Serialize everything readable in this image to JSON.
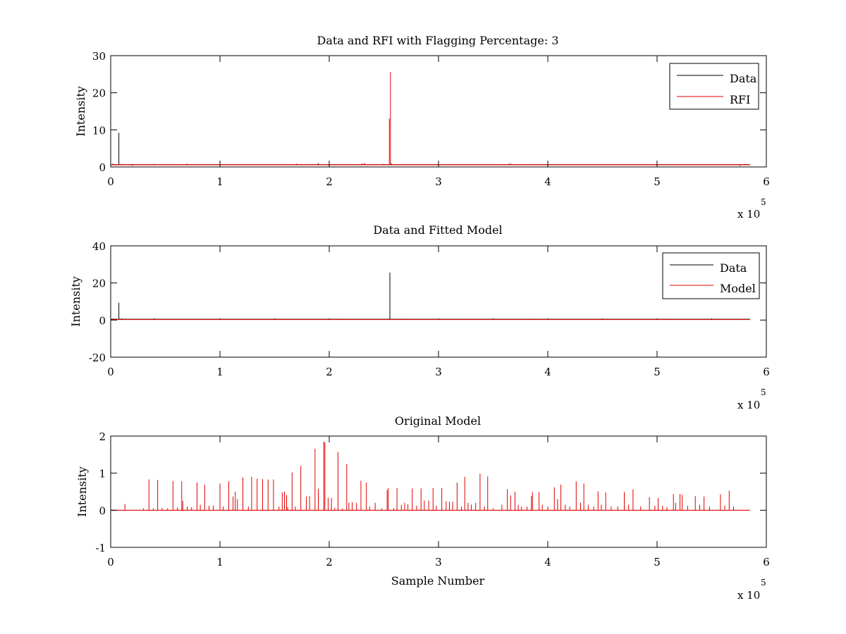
{
  "colors": {
    "data": "#000000",
    "rfi": "#e00000",
    "model": "#e00000",
    "background": "#ffffff"
  },
  "chart_data": [
    {
      "type": "line",
      "title": "Data and RFI with Flagging Percentage: 3",
      "xlabel": "",
      "ylabel": "Intensity",
      "xlim": [
        0,
        6
      ],
      "ylim": [
        0,
        30
      ],
      "x_multiplier": "x 10",
      "x_multiplier_exponent": "5",
      "x_ticks": [
        "0",
        "1",
        "2",
        "3",
        "4",
        "5",
        "6"
      ],
      "y_ticks": [
        "0",
        "10",
        "20",
        "30"
      ],
      "legend": {
        "placement": "top-right",
        "entries": [
          "Data",
          "RFI"
        ]
      },
      "grid": false,
      "series": [
        {
          "name": "Data",
          "color": "#000000",
          "baseline": 0.6,
          "end": 5.85,
          "spikes": [
            [
              0.02,
              0.9
            ],
            [
              0.05,
              0.4
            ],
            [
              0.075,
              9.2
            ],
            [
              0.1,
              0.8
            ],
            [
              0.14,
              0.6
            ],
            [
              0.2,
              0.3
            ],
            [
              0.23,
              0.5
            ],
            [
              0.4,
              0.8
            ],
            [
              0.6,
              0.7
            ],
            [
              0.9,
              0.7
            ],
            [
              1.2,
              0.7
            ],
            [
              1.5,
              0.7
            ],
            [
              1.9,
              1.0
            ],
            [
              2.3,
              0.9
            ],
            [
              2.5,
              0.8
            ],
            [
              2.9,
              0.7
            ],
            [
              3.4,
              0.7
            ],
            [
              3.8,
              0.7
            ],
            [
              4.3,
              0.7
            ],
            [
              4.9,
              0.7
            ],
            [
              5.3,
              0.7
            ],
            [
              5.76,
              0.3
            ],
            [
              5.8,
              0.8
            ]
          ]
        },
        {
          "name": "RFI",
          "color": "#e00000",
          "baseline": 0.6,
          "end": 5.85,
          "spikes": [
            [
              0.7,
              0.9
            ],
            [
              1.7,
              0.9
            ],
            [
              2.32,
              1.1
            ],
            [
              2.55,
              13.0
            ],
            [
              2.56,
              25.6
            ],
            [
              2.57,
              1.0
            ],
            [
              3.65,
              1.0
            ],
            [
              3.67,
              0.9
            ]
          ]
        }
      ]
    },
    {
      "type": "line",
      "title": "Data and Fitted Model",
      "xlabel": "",
      "ylabel": "Intensity",
      "xlim": [
        0,
        6
      ],
      "ylim": [
        -20,
        40
      ],
      "x_multiplier": "x 10",
      "x_multiplier_exponent": "5",
      "x_ticks": [
        "0",
        "1",
        "2",
        "3",
        "4",
        "5",
        "6"
      ],
      "y_ticks": [
        "-20",
        "0",
        "20",
        "40"
      ],
      "legend": {
        "placement": "top-right",
        "entries": [
          "Data",
          "Model"
        ]
      },
      "grid": false,
      "series": [
        {
          "name": "Data",
          "color": "#000000",
          "baseline": 0.4,
          "end": 5.85,
          "spikes": [
            [
              0.02,
              0.8
            ],
            [
              0.075,
              9.3
            ],
            [
              0.1,
              0.9
            ],
            [
              0.4,
              0.9
            ],
            [
              1.0,
              0.9
            ],
            [
              1.5,
              0.9
            ],
            [
              2.0,
              0.9
            ],
            [
              2.555,
              25.6
            ],
            [
              3.0,
              0.9
            ],
            [
              3.5,
              0.9
            ],
            [
              4.0,
              0.9
            ],
            [
              4.5,
              0.9
            ],
            [
              5.0,
              0.9
            ],
            [
              5.5,
              0.9
            ]
          ]
        },
        {
          "name": "Model",
          "color": "#e00000",
          "baseline": 0.3,
          "end": 5.85,
          "spikes": [
            [
              0.3,
              0.7
            ],
            [
              0.9,
              0.7
            ],
            [
              1.5,
              0.7
            ],
            [
              2.1,
              0.7
            ],
            [
              2.7,
              0.7
            ],
            [
              3.3,
              0.7
            ],
            [
              3.9,
              0.7
            ],
            [
              4.5,
              0.7
            ],
            [
              5.1,
              0.7
            ],
            [
              5.7,
              0.7
            ]
          ]
        }
      ]
    },
    {
      "type": "line",
      "title": "Original Model",
      "xlabel": "Sample Number",
      "ylabel": "Intensity",
      "xlim": [
        0,
        6
      ],
      "ylim": [
        -1,
        2
      ],
      "x_multiplier": "x 10",
      "x_multiplier_exponent": "5",
      "x_ticks": [
        "0",
        "1",
        "2",
        "3",
        "4",
        "5",
        "6"
      ],
      "y_ticks": [
        "-1",
        "0",
        "1",
        "2"
      ],
      "legend": null,
      "grid": false,
      "series": [
        {
          "name": "",
          "color": "#e00000",
          "baseline": 0,
          "end": 5.85,
          "spikes": [
            [
              0.13,
              0.17
            ],
            [
              0.3,
              0.05
            ],
            [
              0.35,
              0.83
            ],
            [
              0.39,
              0.05
            ],
            [
              0.43,
              0.82
            ],
            [
              0.47,
              0.06
            ],
            [
              0.52,
              0.05
            ],
            [
              0.57,
              0.79
            ],
            [
              0.61,
              0.07
            ],
            [
              0.65,
              0.78
            ],
            [
              0.66,
              0.25
            ],
            [
              0.7,
              0.1
            ],
            [
              0.74,
              0.08
            ],
            [
              0.79,
              0.75
            ],
            [
              0.82,
              0.15
            ],
            [
              0.86,
              0.69
            ],
            [
              0.9,
              0.12
            ],
            [
              0.94,
              0.13
            ],
            [
              1.0,
              0.72
            ],
            [
              1.03,
              0.1
            ],
            [
              1.08,
              0.78
            ],
            [
              1.12,
              0.37
            ],
            [
              1.14,
              0.5
            ],
            [
              1.16,
              0.3
            ],
            [
              1.21,
              0.88
            ],
            [
              1.26,
              0.1
            ],
            [
              1.29,
              0.9
            ],
            [
              1.34,
              0.85
            ],
            [
              1.39,
              0.84
            ],
            [
              1.44,
              0.83
            ],
            [
              1.49,
              0.83
            ],
            [
              1.54,
              0.1
            ],
            [
              1.57,
              0.48
            ],
            [
              1.59,
              0.5
            ],
            [
              1.61,
              0.41
            ],
            [
              1.62,
              0.08
            ],
            [
              1.66,
              1.02
            ],
            [
              1.69,
              0.1
            ],
            [
              1.74,
              1.2
            ],
            [
              1.79,
              0.37
            ],
            [
              1.82,
              0.38
            ],
            [
              1.87,
              1.66
            ],
            [
              1.9,
              0.58
            ],
            [
              1.95,
              1.85
            ],
            [
              1.96,
              1.83
            ],
            [
              1.99,
              0.34
            ],
            [
              2.02,
              0.33
            ],
            [
              2.05,
              0.07
            ],
            [
              2.08,
              1.57
            ],
            [
              2.12,
              0.05
            ],
            [
              2.16,
              1.25
            ],
            [
              2.18,
              0.2
            ],
            [
              2.21,
              0.22
            ],
            [
              2.25,
              0.2
            ],
            [
              2.29,
              0.8
            ],
            [
              2.34,
              0.75
            ],
            [
              2.37,
              0.1
            ],
            [
              2.42,
              0.2
            ],
            [
              2.48,
              0.05
            ],
            [
              2.53,
              0.55
            ],
            [
              2.54,
              0.6
            ],
            [
              2.59,
              0.05
            ],
            [
              2.62,
              0.6
            ],
            [
              2.66,
              0.15
            ],
            [
              2.69,
              0.2
            ],
            [
              2.72,
              0.16
            ],
            [
              2.76,
              0.59
            ],
            [
              2.8,
              0.12
            ],
            [
              2.84,
              0.59
            ],
            [
              2.87,
              0.26
            ],
            [
              2.91,
              0.26
            ],
            [
              2.95,
              0.6
            ],
            [
              2.98,
              0.12
            ],
            [
              3.03,
              0.6
            ],
            [
              3.07,
              0.24
            ],
            [
              3.1,
              0.23
            ],
            [
              3.13,
              0.23
            ],
            [
              3.17,
              0.75
            ],
            [
              3.21,
              0.1
            ],
            [
              3.24,
              0.9
            ],
            [
              3.27,
              0.2
            ],
            [
              3.3,
              0.15
            ],
            [
              3.34,
              0.2
            ],
            [
              3.38,
              0.98
            ],
            [
              3.42,
              0.1
            ],
            [
              3.45,
              0.91
            ],
            [
              3.5,
              0.05
            ],
            [
              3.58,
              0.15
            ],
            [
              3.63,
              0.57
            ],
            [
              3.66,
              0.4
            ],
            [
              3.7,
              0.5
            ],
            [
              3.73,
              0.15
            ],
            [
              3.76,
              0.1
            ],
            [
              3.81,
              0.1
            ],
            [
              3.85,
              0.38
            ],
            [
              3.86,
              0.49
            ],
            [
              3.92,
              0.49
            ],
            [
              3.95,
              0.15
            ],
            [
              4.0,
              0.1
            ],
            [
              4.06,
              0.62
            ],
            [
              4.09,
              0.3
            ],
            [
              4.12,
              0.69
            ],
            [
              4.16,
              0.15
            ],
            [
              4.2,
              0.1
            ],
            [
              4.26,
              0.78
            ],
            [
              4.3,
              0.2
            ],
            [
              4.33,
              0.72
            ],
            [
              4.37,
              0.15
            ],
            [
              4.42,
              0.1
            ],
            [
              4.46,
              0.51
            ],
            [
              4.49,
              0.15
            ],
            [
              4.53,
              0.48
            ],
            [
              4.58,
              0.1
            ],
            [
              4.64,
              0.1
            ],
            [
              4.7,
              0.49
            ],
            [
              4.74,
              0.15
            ],
            [
              4.78,
              0.56
            ],
            [
              4.85,
              0.1
            ],
            [
              4.93,
              0.35
            ],
            [
              4.98,
              0.12
            ],
            [
              5.01,
              0.33
            ],
            [
              5.05,
              0.12
            ],
            [
              5.09,
              0.08
            ],
            [
              5.15,
              0.44
            ],
            [
              5.17,
              0.2
            ],
            [
              5.21,
              0.44
            ],
            [
              5.23,
              0.42
            ],
            [
              5.28,
              0.12
            ],
            [
              5.35,
              0.38
            ],
            [
              5.39,
              0.15
            ],
            [
              5.43,
              0.37
            ],
            [
              5.48,
              0.1
            ],
            [
              5.58,
              0.43
            ],
            [
              5.62,
              0.12
            ],
            [
              5.66,
              0.53
            ],
            [
              5.7,
              0.1
            ]
          ]
        }
      ]
    }
  ]
}
